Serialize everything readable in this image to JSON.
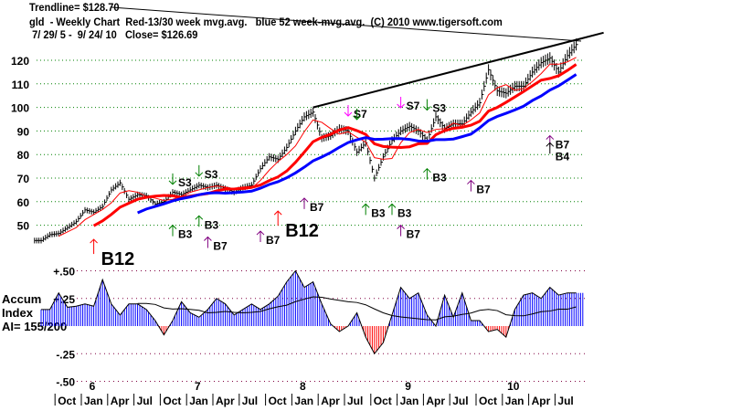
{
  "header": {
    "trendline": "Trendline= $128.70",
    "title": "gld  - Weekly Chart  Red-13/30 week mvg.avg.   blue 52 week-mvg.avg.  (C) 2010 www.tigersoft.com",
    "range": " 7/ 29/ 5 -  9/ 24/ 10   Close= $126.69"
  },
  "accum_panel": {
    "label_line1": "Accum",
    "label_line2": "Index",
    "label_line3": "AI= 155/200"
  },
  "colors": {
    "price_bars": "#000000",
    "ma13": "#ff0000",
    "ma30": "#ff0000",
    "ma52": "#0000ff",
    "accum_positive": "#0000ff",
    "accum_negative": "#ff0000",
    "trendline": "#000000",
    "grid": "#008000",
    "buy_B3": "#008000",
    "buy_B7": "#800080",
    "buy_B12": "#ff0000",
    "sell_S3": "#008000",
    "sell_S7": "#ff00ff",
    "buy_B4": "#000000"
  },
  "chart_data": [
    {
      "type": "line",
      "title": "gld - Weekly Chart",
      "x_year_labels": [
        "6",
        "7",
        "8",
        "9",
        "10"
      ],
      "x_month_labels": [
        "Oct",
        "Jan",
        "Apr",
        "Jul",
        "Oct",
        "Jan",
        "Apr",
        "Jul",
        "Oct",
        "Jan",
        "Apr",
        "Jul",
        "Oct",
        "Jan",
        "Apr",
        "Jul",
        "Oct",
        "Jan",
        "Apr",
        "Jul"
      ],
      "y_ticks": [
        120,
        110,
        100,
        90,
        80,
        70,
        60,
        50
      ],
      "ylim": [
        40,
        130
      ],
      "grid": true,
      "months": [
        "2005-08",
        "2005-09",
        "2005-10",
        "2005-11",
        "2005-12",
        "2006-01",
        "2006-02",
        "2006-03",
        "2006-04",
        "2006-05",
        "2006-06",
        "2006-07",
        "2006-08",
        "2006-09",
        "2006-10",
        "2006-11",
        "2006-12",
        "2007-01",
        "2007-02",
        "2007-03",
        "2007-04",
        "2007-05",
        "2007-06",
        "2007-07",
        "2007-08",
        "2007-09",
        "2007-10",
        "2007-11",
        "2007-12",
        "2008-01",
        "2008-02",
        "2008-03",
        "2008-04",
        "2008-05",
        "2008-06",
        "2008-07",
        "2008-08",
        "2008-09",
        "2008-10",
        "2008-11",
        "2008-12",
        "2009-01",
        "2009-02",
        "2009-03",
        "2009-04",
        "2009-05",
        "2009-06",
        "2009-07",
        "2009-08",
        "2009-09",
        "2009-10",
        "2009-11",
        "2009-12",
        "2010-01",
        "2010-02",
        "2010-03",
        "2010-04",
        "2010-05",
        "2010-06",
        "2010-07",
        "2010-08",
        "2010-09"
      ],
      "close": [
        43.5,
        46,
        46.5,
        49,
        51.5,
        56.5,
        55.5,
        58,
        65,
        68,
        61,
        63,
        62.5,
        59,
        60,
        64,
        63,
        65,
        67,
        66,
        67,
        65.5,
        64,
        66,
        67,
        74,
        79,
        78,
        83,
        90,
        96,
        98,
        87,
        88,
        91,
        90,
        81,
        85,
        70,
        79,
        86,
        90,
        92,
        90,
        86,
        96,
        91,
        93,
        93,
        98,
        102,
        116,
        107,
        106,
        109,
        109,
        115,
        119,
        121,
        115,
        122,
        126.69
      ],
      "moving_averages": [
        {
          "name": "Red-13 week",
          "weeks": 13
        },
        {
          "name": "Red-30 week",
          "weeks": 30
        },
        {
          "name": "blue 52 week",
          "weeks": 52
        }
      ],
      "trendline": {
        "from": {
          "month": "2008-03",
          "price": 100
        },
        "to": {
          "month": "2010-09",
          "price": 128.7
        }
      },
      "signals": [
        {
          "label": "B12",
          "dir": "up",
          "month": "2006-02",
          "price": 44,
          "color": "#ff0000",
          "big": true
        },
        {
          "label": "S3",
          "dir": "down",
          "month": "2006-11",
          "price": 72,
          "color": "#008000"
        },
        {
          "label": "S3",
          "dir": "down",
          "month": "2007-02",
          "price": 75.5,
          "color": "#008000"
        },
        {
          "label": "B3",
          "dir": "up",
          "month": "2006-11",
          "price": 50,
          "color": "#008000"
        },
        {
          "label": "B3",
          "dir": "up",
          "month": "2007-02",
          "price": 54,
          "color": "#008000"
        },
        {
          "label": "B7",
          "dir": "up",
          "month": "2007-03",
          "price": 45,
          "color": "#800080"
        },
        {
          "label": "B7",
          "dir": "up",
          "month": "2007-09",
          "price": 47.5,
          "color": "#800080"
        },
        {
          "label": "B12",
          "dir": "up",
          "month": "2007-11",
          "price": 56,
          "color": "#ff0000",
          "big": true
        },
        {
          "label": "B7",
          "dir": "up",
          "month": "2008-02",
          "price": 61.5,
          "color": "#800080"
        },
        {
          "label": "S7",
          "dir": "down",
          "month": "2008-07",
          "price": 101,
          "color": "#ff00ff"
        },
        {
          "label": "",
          "dir": "down",
          "month": "2008-08",
          "price": 99.5,
          "color": "#008000"
        },
        {
          "label": "B3",
          "dir": "up",
          "month": "2008-09",
          "price": 59,
          "color": "#008000"
        },
        {
          "label": "B3",
          "dir": "up",
          "month": "2008-12",
          "price": 59,
          "color": "#008000"
        },
        {
          "label": "B7",
          "dir": "up",
          "month": "2009-01",
          "price": 50,
          "color": "#800080"
        },
        {
          "label": "S7",
          "dir": "down",
          "month": "2009-01",
          "price": 104.5,
          "color": "#ff00ff"
        },
        {
          "label": "S3",
          "dir": "down",
          "month": "2009-04",
          "price": 103.5,
          "color": "#008000"
        },
        {
          "label": "B3",
          "dir": "up",
          "month": "2009-04",
          "price": 74,
          "color": "#008000"
        },
        {
          "label": "B7",
          "dir": "up",
          "month": "2009-09",
          "price": 69,
          "color": "#800080"
        },
        {
          "label": "B7",
          "dir": "up",
          "month": "2010-06",
          "price": 88,
          "color": "#800080"
        },
        {
          "label": "B4",
          "dir": "up",
          "month": "2010-06",
          "price": 85,
          "color": "#000000"
        }
      ]
    },
    {
      "type": "bar",
      "title": "Accum Index",
      "y_tick_labels": [
        "+.50",
        "+.25",
        "-.25",
        "-.50"
      ],
      "y_ticks": [
        0.5,
        0.25,
        -0.25,
        -0.5
      ],
      "ylim": [
        -0.5,
        0.5
      ],
      "value_label": "AI= 155/200",
      "values": [
        0.15,
        0.15,
        0.3,
        0.17,
        0.18,
        0.2,
        0.18,
        0.42,
        0.2,
        0.1,
        0.2,
        0.2,
        0.15,
        0.05,
        -0.08,
        0.05,
        0.22,
        0.12,
        0.08,
        0.15,
        0.25,
        0.2,
        0.1,
        0.15,
        0.2,
        0.15,
        0.2,
        0.27,
        0.4,
        0.5,
        0.35,
        0.4,
        0.2,
        0.02,
        -0.05,
        0.0,
        0.12,
        -0.1,
        -0.25,
        -0.15,
        0.1,
        0.35,
        0.25,
        0.3,
        0.1,
        0.0,
        0.28,
        0.08,
        0.3,
        0.05,
        0.05,
        -0.05,
        -0.03,
        -0.1,
        0.15,
        0.28,
        0.3,
        0.25,
        0.35,
        0.28,
        0.3,
        0.3
      ]
    }
  ]
}
